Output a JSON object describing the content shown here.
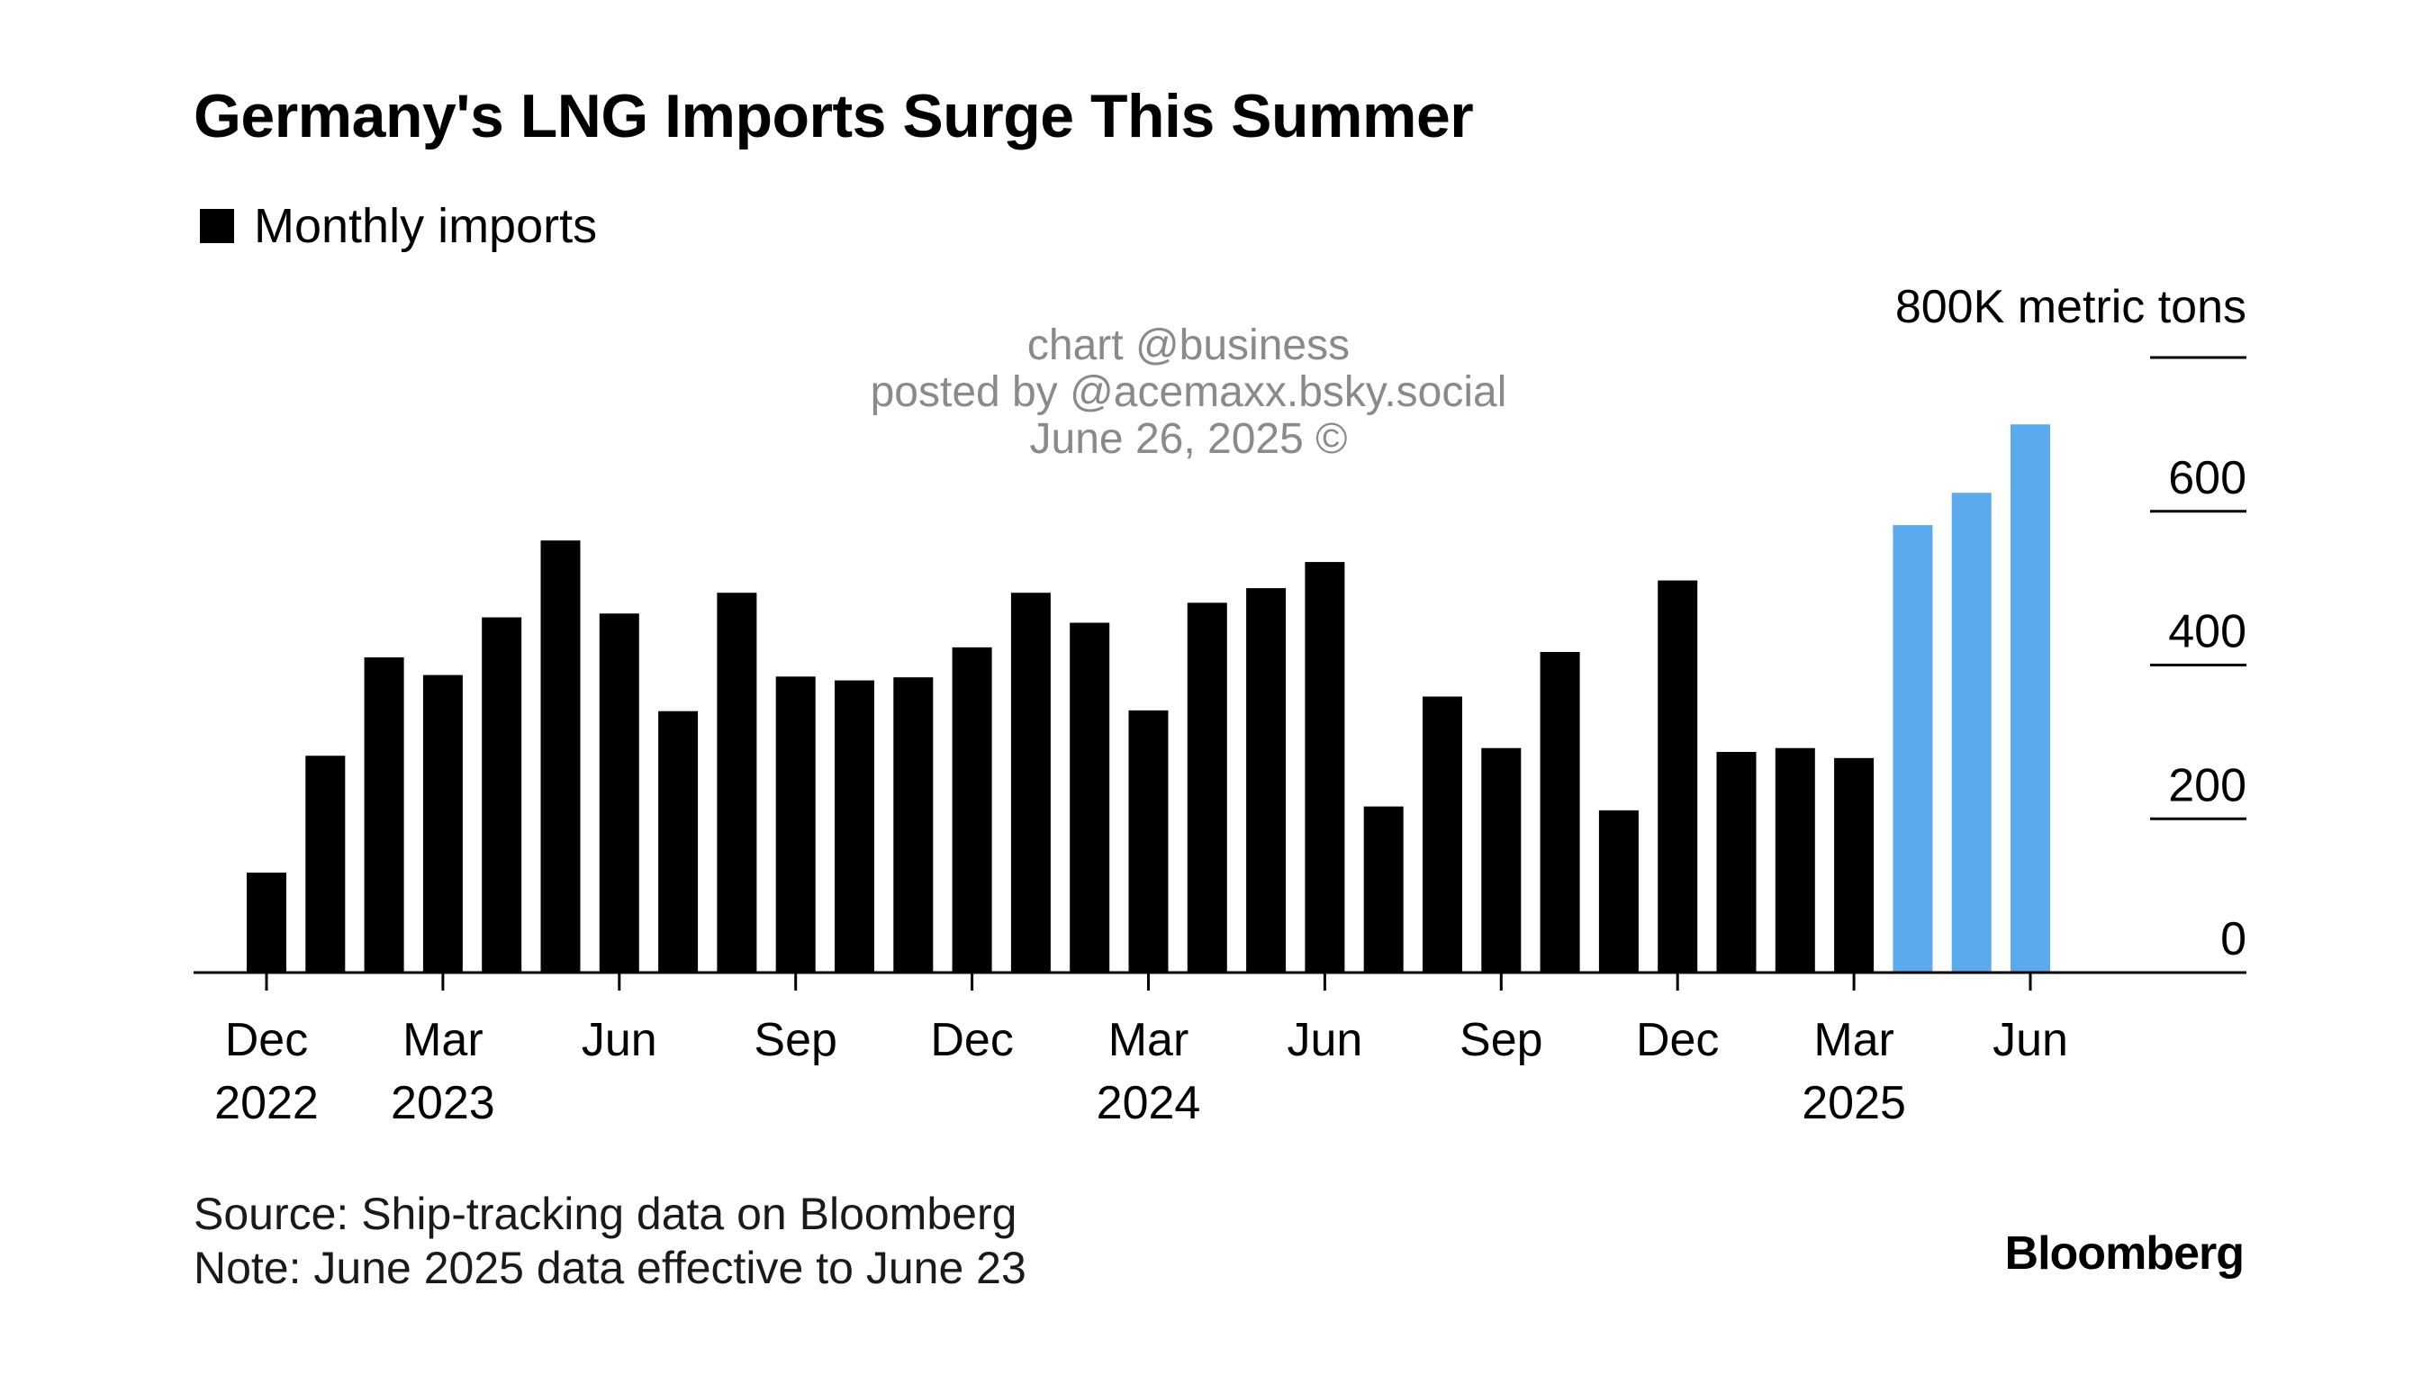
{
  "chart_data": {
    "type": "bar",
    "title": "Germany's LNG Imports Surge This Summer",
    "legend": [
      "Monthly imports"
    ],
    "legend_position": "top-left",
    "unit_label": "800K metric tons",
    "y_axis_side": "right",
    "ylim": [
      0,
      800
    ],
    "y_ticks": [
      "0",
      "200",
      "400",
      "600"
    ],
    "grid": false,
    "categories": [
      "2022-12",
      "2023-01",
      "2023-02",
      "2023-03",
      "2023-04",
      "2023-05",
      "2023-06",
      "2023-07",
      "2023-08",
      "2023-09",
      "2023-10",
      "2023-11",
      "2023-12",
      "2024-01",
      "2024-02",
      "2024-03",
      "2024-04",
      "2024-05",
      "2024-06",
      "2024-07",
      "2024-08",
      "2024-09",
      "2024-10",
      "2024-11",
      "2024-12",
      "2025-01",
      "2025-02",
      "2025-03",
      "2025-04",
      "2025-05",
      "2025-06"
    ],
    "values": [
      130,
      282,
      410,
      387,
      462,
      562,
      467,
      340,
      494,
      385,
      380,
      384,
      423,
      494,
      455,
      341,
      481,
      500,
      534,
      216,
      359,
      292,
      417,
      211,
      510,
      287,
      292,
      279,
      582,
      624,
      713
    ],
    "highlight_from_index": 28,
    "bar_color": "#000000",
    "highlight_color": "#5aaaed",
    "x_tick_labels": [
      {
        "index": 0,
        "lines": [
          "Dec",
          "2022"
        ]
      },
      {
        "index": 3,
        "lines": [
          "Mar",
          "2023"
        ]
      },
      {
        "index": 6,
        "lines": [
          "Jun"
        ]
      },
      {
        "index": 9,
        "lines": [
          "Sep"
        ]
      },
      {
        "index": 12,
        "lines": [
          "Dec"
        ]
      },
      {
        "index": 15,
        "lines": [
          "Mar",
          "2024"
        ]
      },
      {
        "index": 18,
        "lines": [
          "Jun"
        ]
      },
      {
        "index": 21,
        "lines": [
          "Sep"
        ]
      },
      {
        "index": 24,
        "lines": [
          "Dec"
        ]
      },
      {
        "index": 27,
        "lines": [
          "Mar",
          "2025"
        ]
      },
      {
        "index": 30,
        "lines": [
          "Jun"
        ]
      }
    ]
  },
  "watermark": {
    "line1": "chart @business",
    "line2": "posted by @acemaxx.bsky.social",
    "line3": "June 26, 2025 ©"
  },
  "footer": {
    "source": "Source: Ship-tracking data on Bloomberg",
    "note": "Note: June 2025 data effective to June 23"
  },
  "brand": "Bloomberg"
}
